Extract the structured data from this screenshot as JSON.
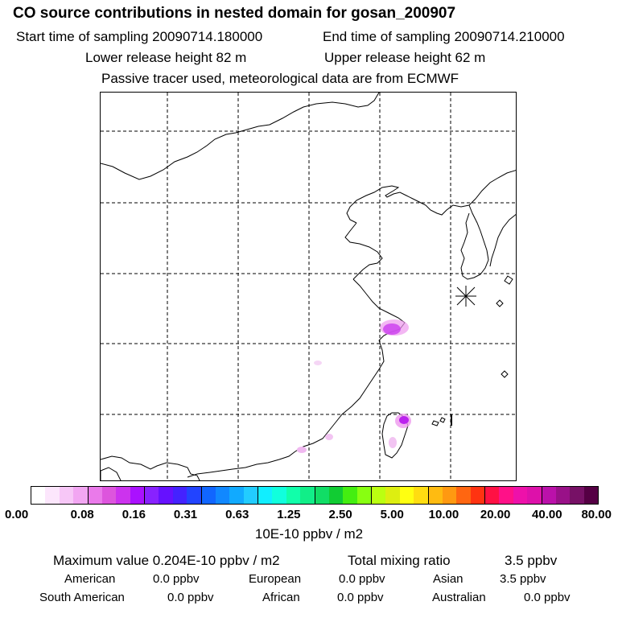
{
  "header": {
    "title": "CO  source contributions in nested domain for gosan_200907",
    "start_label": "Start time of sampling 20090714.180000",
    "end_label": "End time of sampling 20090714.210000",
    "lower_label": "Lower release height   82 m",
    "upper_label": "Upper release height   62 m",
    "tracer_note": "Passive tracer used, meteorological data are from ECMWF"
  },
  "colorbar": {
    "colors": [
      "#ffffff",
      "#fce6fc",
      "#f7c7f7",
      "#f2a6f2",
      "#ea7aea",
      "#dd55dd",
      "#cc33ee",
      "#aa11ff",
      "#8822ff",
      "#6611ff",
      "#4422ff",
      "#2244ff",
      "#1166ff",
      "#1188ff",
      "#11aaff",
      "#22ccff",
      "#11eeff",
      "#11ffdd",
      "#11ffaa",
      "#11ee88",
      "#11dd66",
      "#11cc33",
      "#44ee11",
      "#88ff11",
      "#bbff11",
      "#ddee11",
      "#ffff11",
      "#ffdd11",
      "#ffbb11",
      "#ff9911",
      "#ff6611",
      "#ff3311",
      "#ff1144",
      "#ff1188",
      "#ee11aa",
      "#dd11aa",
      "#bb11aa",
      "#991188",
      "#771166",
      "#550044"
    ],
    "ticks": [
      "0.00",
      "0.08",
      "0.16",
      "0.31",
      "0.63",
      "1.25",
      "2.50",
      "5.00",
      "10.00",
      "20.00",
      "40.00",
      "80.00"
    ],
    "unit": "10E-10 ppbv / m2"
  },
  "stats": {
    "max_value": "Maximum value  0.204E-10 ppbv / m2",
    "total_label": "Total mixing ratio",
    "total_value": "3.5 ppbv",
    "rows": [
      [
        {
          "label": "American",
          "value": "0.0 ppbv"
        },
        {
          "label": "European",
          "value": "0.0 ppbv"
        },
        {
          "label": "Asian",
          "value": "3.5 ppbv"
        }
      ],
      [
        {
          "label": "South American",
          "value": "0.0 ppbv"
        },
        {
          "label": "African",
          "value": "0.0 ppbv"
        },
        {
          "label": "Australian",
          "value": "0.0 ppbv"
        }
      ]
    ]
  }
}
